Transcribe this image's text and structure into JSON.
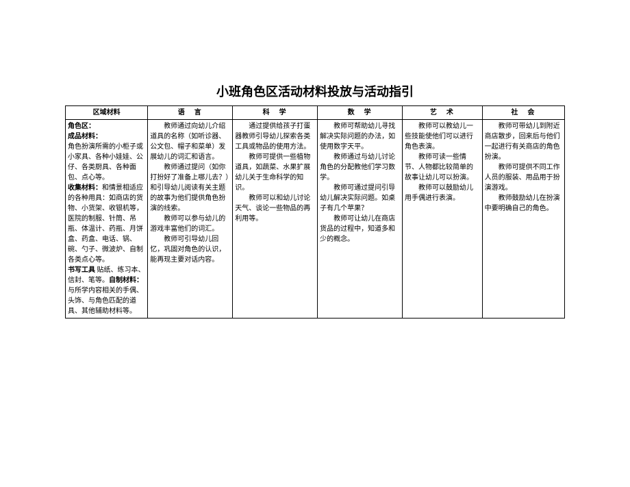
{
  "title": "小班角色区活动材料投放与活动指引",
  "headers": [
    "区域材料",
    "语　言",
    "科　学",
    "数　学",
    "艺　术",
    "社　会"
  ],
  "cells": {
    "materials": {
      "h1": "角色区：",
      "h2": "成品材料：",
      "p1": "角色扮演所需的小柜子或小家具、各种小娃娃、公仔、各类厨具、各种面包、点心等。",
      "h3": "收集材料：",
      "p2": "和情景相适应的各种用具：如商店的货物、小货架、收银机等，医院的制服、针筒、吊瓶、体温计、药瓶、月饼盒、药盒、电话、锅、碗、勺子、微波炉、自制各类点心等。",
      "h4": "书写工具",
      "p3": "贴纸、练习本、信封、笔等。",
      "h5": "自制材料：",
      "p4": "与所学内容相关的手偶、头饰、与角色匹配的道具、其他辅助材料等。"
    },
    "language": {
      "p1": "教师通过向幼儿介绍道具的名称（如听诊器、公文包、帽子和菜单）发展幼儿的词汇和语言。",
      "p2": "教师通过提问（如你打扮好了准备上哪儿去？）和引导幼儿阅读有关主题的故事为他们提供角色扮演的线索。",
      "p3": "教师可以参与幼儿的游戏丰富他们的词汇。",
      "p4": "教师可引导幼儿回忆，巩固对角色的认识，能再现主要对话内容。"
    },
    "science": {
      "p1": "通过提供给孩子打蛋器教师引导幼儿探索各类工具或物品的使用方法。",
      "p2": "教师可提供一些植物道具，如蔬菜、水果扩展幼儿关于生命科学的知识。",
      "p3": "教师可以和幼儿讨论天气、谈论一些物品的再利用等。"
    },
    "math": {
      "p1": "教师可帮助幼儿寻找解决实际问题的办法，如使用数字天平。",
      "p2": "教师通过与幼儿讨论角色的分配教他们学习数学。",
      "p3": "教师可通过提问引导幼儿解决实际问题。如桌子有几个苹果？",
      "p4": "教师可让幼儿在商店货品的过程中，知道多和少的概念。"
    },
    "art": {
      "p1": "教师可以教幼儿一些技能使他们可以进行角色表演。",
      "p2": "教师可读一些情节、人物都比较简单的故事让幼儿可以扮演。",
      "p3": "教师可以鼓励幼儿用手偶进行表演。"
    },
    "society": {
      "p1": "教师可带幼儿到附近商店散步，回来后与他们一起进行有关商店的角色扮演。",
      "p2": "教师可提供不同工作人员的服装、用品用于扮演游戏。",
      "p3": "教师鼓励幼儿在扮演中要明确自己的角色。"
    }
  }
}
